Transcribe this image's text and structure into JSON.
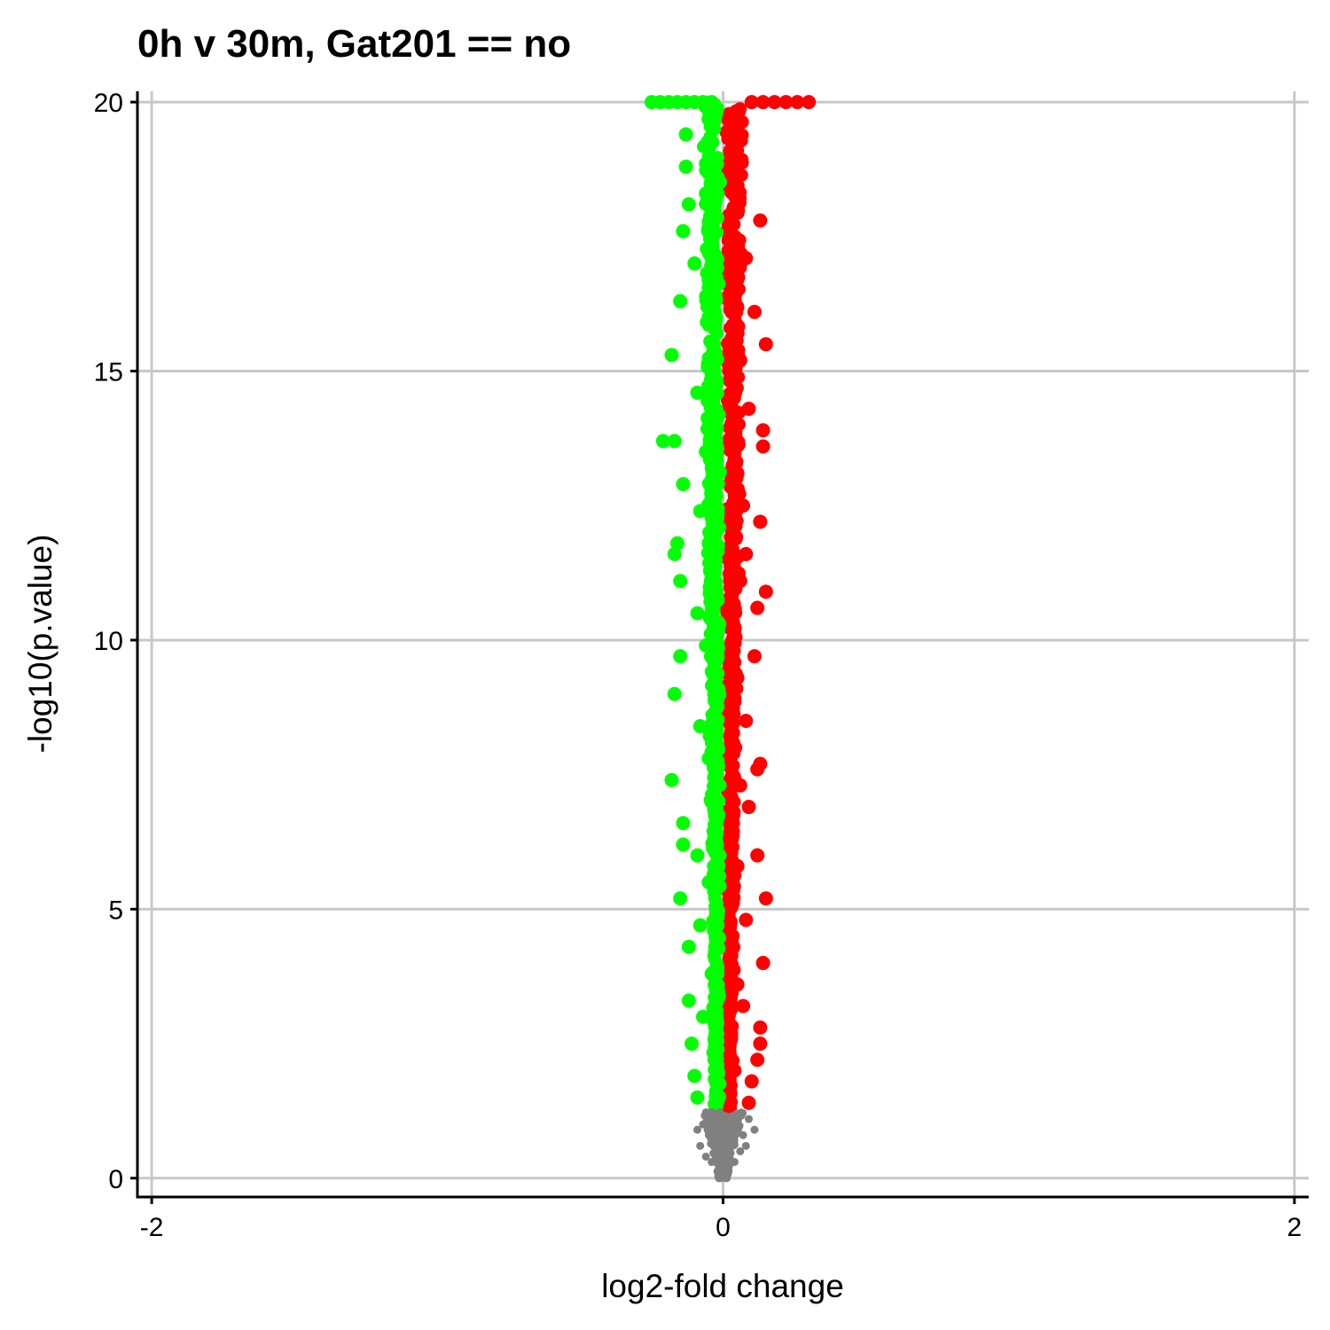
{
  "chart_data": {
    "type": "scatter",
    "title": "0h v 30m, Gat201 == no",
    "xlabel": "log2-fold change",
    "ylabel": "-log10(p.value)",
    "xlim": [
      -2.05,
      2.05
    ],
    "ylim": [
      -0.35,
      20.2
    ],
    "x_ticks": [
      -2,
      0,
      2
    ],
    "x_tick_labels": [
      "-2",
      "0",
      "2"
    ],
    "y_ticks": [
      0,
      5,
      10,
      15,
      20
    ],
    "y_tick_labels": [
      "0",
      "5",
      "10",
      "15",
      "20"
    ],
    "grid": true,
    "legend": "none",
    "y_cap": 20,
    "significance_threshold": 1.3,
    "colors": {
      "up": "#ff0000",
      "down": "#00ff00",
      "not_significant": "#808080",
      "grid": "#c8c8c8",
      "axis": "#000000"
    },
    "series": [
      {
        "group": "up",
        "color": "#ff0000",
        "points": [
          [
            0.3,
            20.0
          ],
          [
            0.26,
            20.0
          ],
          [
            0.22,
            20.0
          ],
          [
            0.18,
            20.0
          ],
          [
            0.14,
            20.0
          ],
          [
            0.1,
            20.0
          ],
          [
            0.13,
            17.8
          ],
          [
            0.11,
            16.1
          ],
          [
            0.15,
            15.5
          ],
          [
            0.14,
            13.9
          ],
          [
            0.14,
            13.6
          ],
          [
            0.13,
            12.2
          ],
          [
            0.15,
            10.9
          ],
          [
            0.12,
            10.6
          ],
          [
            0.11,
            9.7
          ],
          [
            0.13,
            7.7
          ],
          [
            0.12,
            7.6
          ],
          [
            0.12,
            6.0
          ],
          [
            0.15,
            5.2
          ],
          [
            0.14,
            4.0
          ],
          [
            0.13,
            2.8
          ],
          [
            0.13,
            2.5
          ],
          [
            0.12,
            2.2
          ],
          [
            0.1,
            1.8
          ],
          [
            0.09,
            1.4
          ],
          [
            0.08,
            17.1
          ],
          [
            0.09,
            14.3
          ],
          [
            0.07,
            12.5
          ],
          [
            0.08,
            11.6
          ],
          [
            0.08,
            8.5
          ],
          [
            0.09,
            6.9
          ],
          [
            0.08,
            4.8
          ],
          [
            0.07,
            3.2
          ],
          [
            0.06,
            18.9
          ],
          [
            0.05,
            16.7
          ],
          [
            0.06,
            15.2
          ],
          [
            0.05,
            13.1
          ],
          [
            0.06,
            11.1
          ],
          [
            0.05,
            9.3
          ],
          [
            0.06,
            7.3
          ],
          [
            0.05,
            5.8
          ],
          [
            0.05,
            3.6
          ],
          [
            0.04,
            2.0
          ],
          [
            0.04,
            19.5
          ],
          [
            0.03,
            17.5
          ],
          [
            0.04,
            14.7
          ],
          [
            0.03,
            10.3
          ],
          [
            0.03,
            6.3
          ],
          [
            0.02,
            1.6
          ],
          [
            0.03,
            4.4
          ]
        ]
      },
      {
        "group": "down",
        "color": "#00ff00",
        "points": [
          [
            -0.25,
            20.0
          ],
          [
            -0.22,
            20.0
          ],
          [
            -0.19,
            20.0
          ],
          [
            -0.16,
            20.0
          ],
          [
            -0.13,
            20.0
          ],
          [
            -0.1,
            20.0
          ],
          [
            -0.07,
            20.0
          ],
          [
            -0.04,
            20.0
          ],
          [
            -0.13,
            19.4
          ],
          [
            -0.13,
            18.8
          ],
          [
            -0.12,
            18.1
          ],
          [
            -0.14,
            17.6
          ],
          [
            -0.15,
            16.3
          ],
          [
            -0.18,
            15.3
          ],
          [
            -0.21,
            13.7
          ],
          [
            -0.17,
            13.7
          ],
          [
            -0.14,
            12.9
          ],
          [
            -0.16,
            11.8
          ],
          [
            -0.17,
            11.6
          ],
          [
            -0.15,
            11.1
          ],
          [
            -0.15,
            9.7
          ],
          [
            -0.17,
            9.0
          ],
          [
            -0.18,
            7.4
          ],
          [
            -0.14,
            6.6
          ],
          [
            -0.14,
            6.2
          ],
          [
            -0.15,
            5.2
          ],
          [
            -0.12,
            4.3
          ],
          [
            -0.12,
            3.3
          ],
          [
            -0.11,
            2.5
          ],
          [
            -0.1,
            1.9
          ],
          [
            -0.09,
            1.5
          ],
          [
            -0.1,
            17.0
          ],
          [
            -0.09,
            14.6
          ],
          [
            -0.08,
            12.4
          ],
          [
            -0.09,
            10.5
          ],
          [
            -0.08,
            8.4
          ],
          [
            -0.09,
            6.0
          ],
          [
            -0.08,
            4.7
          ],
          [
            -0.07,
            3.0
          ],
          [
            -0.06,
            18.3
          ],
          [
            -0.05,
            16.0
          ],
          [
            -0.06,
            13.5
          ],
          [
            -0.05,
            11.8
          ],
          [
            -0.06,
            9.9
          ],
          [
            -0.05,
            7.8
          ],
          [
            -0.05,
            5.5
          ],
          [
            -0.04,
            3.8
          ],
          [
            -0.03,
            2.2
          ],
          [
            -0.03,
            15.0
          ],
          [
            -0.02,
            8.9
          ]
        ]
      },
      {
        "group": "not_significant",
        "color": "#808080",
        "points": [
          [
            0.05,
            1.2
          ],
          [
            0.09,
            1.1
          ],
          [
            0.11,
            0.9
          ],
          [
            0.07,
            0.8
          ],
          [
            0.03,
            0.7
          ],
          [
            -0.03,
            1.2
          ],
          [
            -0.07,
            1.0
          ],
          [
            -0.05,
            0.8
          ],
          [
            -0.08,
            0.6
          ],
          [
            -0.02,
            0.5
          ],
          [
            0.02,
            0.4
          ],
          [
            0.06,
            0.5
          ],
          [
            -0.04,
            0.3
          ],
          [
            0.01,
            0.2
          ],
          [
            -0.01,
            0.1
          ],
          [
            0.0,
            0.05
          ],
          [
            0.04,
            0.3
          ],
          [
            -0.06,
            0.4
          ],
          [
            0.08,
            0.6
          ],
          [
            -0.09,
            0.9
          ]
        ]
      }
    ]
  }
}
